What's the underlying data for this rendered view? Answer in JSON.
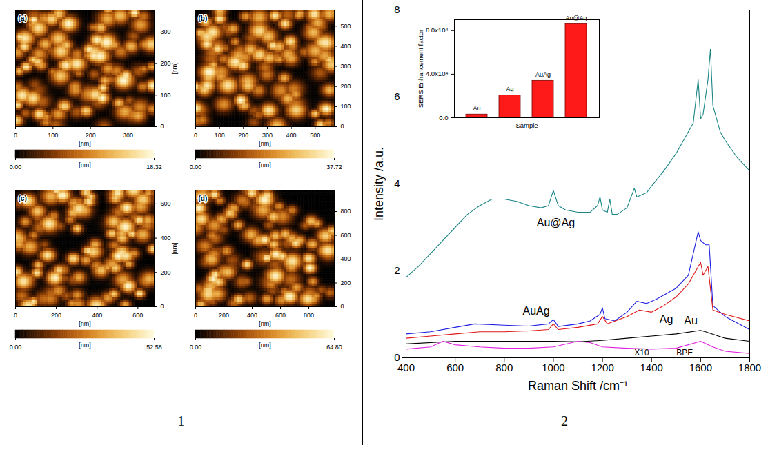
{
  "figure_labels": [
    "1",
    "2"
  ],
  "afm_images": [
    {
      "label": "(a)",
      "xlabel": "[nm]",
      "ylabel": "[nm]",
      "xlim": [
        0,
        370
      ],
      "ylim": [
        0,
        370
      ],
      "xticks": [
        0,
        100,
        200,
        300
      ],
      "yticks": [
        0,
        100,
        200,
        300
      ],
      "colorbar": {
        "range": [
          0,
          18.32
        ],
        "ticks": [
          {
            "value": 0,
            "label": "0.00"
          },
          18.32
        ],
        "label": "[nm]"
      }
    },
    {
      "label": "(b)",
      "xlabel": "[nm]",
      "xlim": [
        0,
        580
      ],
      "ylim": [
        0,
        580
      ],
      "xticks": [
        0,
        100,
        200,
        300,
        400,
        500
      ],
      "yticks": [
        0,
        100,
        200,
        300,
        400,
        500
      ],
      "colorbar": {
        "range": [
          0,
          37.72
        ],
        "ticks": [
          {
            "value": 0,
            "label": "0.00"
          },
          37.72
        ],
        "label": "[nm]"
      }
    },
    {
      "label": "(c)",
      "xlabel": "[nm]",
      "ylabel": "[nm]",
      "xlim": [
        0,
        680
      ],
      "ylim": [
        0,
        680
      ],
      "xticks": [
        0,
        200,
        400,
        600
      ],
      "yticks": [
        0,
        200,
        400,
        600
      ],
      "colorbar": {
        "range": [
          0,
          52.58
        ],
        "ticks": [
          {
            "value": 0,
            "label": "0.00"
          },
          52.58
        ],
        "label": "[nm]"
      }
    },
    {
      "label": "(d)",
      "xlabel": "[nm]",
      "xlim": [
        0,
        980
      ],
      "ylim": [
        0,
        980
      ],
      "xticks": [
        0,
        200,
        400,
        600,
        800
      ],
      "yticks": [
        0,
        200,
        400,
        600,
        800
      ],
      "colorbar": {
        "range": [
          0,
          64.8
        ],
        "ticks": [
          {
            "value": 0,
            "label": "0.00"
          },
          {
            "value": 64.8,
            "label": "64.80"
          }
        ],
        "label": "[nm]"
      }
    }
  ],
  "chart_data": [
    {
      "type": "line",
      "xlabel": "Raman Shift /cm⁻¹",
      "ylabel": "Intensity /a.u.",
      "xlim": [
        400,
        1800
      ],
      "ylim": [
        0,
        8
      ],
      "xticks": [
        400,
        600,
        800,
        1000,
        1200,
        1400,
        1600,
        1800
      ],
      "yticks": [
        0,
        2,
        4,
        6,
        8
      ],
      "grid": false,
      "series": [
        {
          "name": "Au@Ag",
          "color": "#1a8585",
          "label_at": [
            1010,
            3.1
          ],
          "x": [
            400,
            450,
            500,
            550,
            600,
            650,
            700,
            750,
            800,
            850,
            900,
            950,
            980,
            1000,
            1020,
            1050,
            1100,
            1150,
            1180,
            1190,
            1200,
            1220,
            1230,
            1240,
            1260,
            1300,
            1330,
            1340,
            1380,
            1400,
            1450,
            1500,
            1540,
            1570,
            1590,
            1600,
            1610,
            1630,
            1640,
            1650,
            1680,
            1700,
            1750,
            1800
          ],
          "values": [
            1.85,
            2.1,
            2.4,
            2.7,
            3.0,
            3.3,
            3.5,
            3.65,
            3.65,
            3.6,
            3.5,
            3.45,
            3.5,
            3.85,
            3.5,
            3.4,
            3.35,
            3.35,
            3.5,
            3.7,
            3.4,
            3.35,
            3.65,
            3.3,
            3.3,
            3.45,
            3.9,
            3.7,
            3.8,
            3.95,
            4.3,
            4.7,
            5.1,
            5.4,
            6.4,
            5.5,
            5.6,
            6.4,
            7.1,
            5.8,
            5.2,
            5.0,
            4.6,
            4.3
          ]
        },
        {
          "name": "AuAg",
          "color": "#1f1fe0",
          "label_at": [
            930,
            1.08
          ],
          "x": [
            400,
            500,
            600,
            680,
            800,
            900,
            980,
            1000,
            1020,
            1100,
            1150,
            1190,
            1200,
            1210,
            1250,
            1300,
            1340,
            1380,
            1420,
            1500,
            1550,
            1590,
            1600,
            1620,
            1635,
            1650,
            1700,
            1800
          ],
          "values": [
            0.55,
            0.6,
            0.7,
            0.78,
            0.75,
            0.73,
            0.78,
            0.88,
            0.72,
            0.78,
            0.85,
            1.0,
            1.15,
            0.9,
            0.85,
            1.05,
            1.3,
            1.25,
            1.35,
            1.6,
            1.9,
            2.9,
            2.7,
            2.6,
            2.6,
            1.2,
            0.95,
            0.65
          ]
        },
        {
          "name": "Ag",
          "color": "#e01818",
          "label_at": [
            1460,
            0.88
          ],
          "x": [
            400,
            500,
            600,
            700,
            800,
            900,
            980,
            1000,
            1020,
            1100,
            1180,
            1200,
            1220,
            1300,
            1350,
            1400,
            1450,
            1500,
            1550,
            1600,
            1610,
            1630,
            1650,
            1700,
            1800
          ],
          "values": [
            0.45,
            0.5,
            0.55,
            0.6,
            0.6,
            0.62,
            0.65,
            0.78,
            0.65,
            0.7,
            0.78,
            0.95,
            0.78,
            0.95,
            1.1,
            1.05,
            1.2,
            1.4,
            1.7,
            2.2,
            1.9,
            2.1,
            1.1,
            1.0,
            0.85
          ]
        },
        {
          "name": "Au",
          "color": "#000000",
          "label_at": [
            1560,
            0.85
          ],
          "x": [
            400,
            600,
            800,
            1000,
            1100,
            1200,
            1300,
            1400,
            1500,
            1600,
            1620,
            1700,
            1800
          ],
          "values": [
            0.32,
            0.38,
            0.38,
            0.38,
            0.37,
            0.4,
            0.45,
            0.5,
            0.55,
            0.63,
            0.6,
            0.45,
            0.38
          ]
        },
        {
          "name": "BPE",
          "color": "#e020e0",
          "label_at": [
            1535,
            0.11
          ],
          "x": [
            400,
            500,
            550,
            600,
            700,
            800,
            900,
            1000,
            1100,
            1150,
            1200,
            1300,
            1400,
            1500,
            1600,
            1650,
            1700,
            1800
          ],
          "values": [
            0.2,
            0.25,
            0.38,
            0.3,
            0.25,
            0.22,
            0.22,
            0.25,
            0.38,
            0.35,
            0.25,
            0.22,
            0.2,
            0.22,
            0.38,
            0.25,
            0.15,
            0.1
          ]
        }
      ],
      "annotations": [
        {
          "text": "X10",
          "x": 1360,
          "y": 0.11
        }
      ]
    },
    {
      "type": "bar",
      "xlabel": "Sample",
      "ylabel": "SERS Enhancement factor",
      "categories": [
        "Au",
        "Ag",
        "AuAg",
        "Au@Ag"
      ],
      "values": [
        3000,
        20500,
        34000,
        86000
      ],
      "color": "#ff1a1a",
      "ylim": [
        0,
        90000
      ],
      "yticks": [
        {
          "value": 0,
          "label": "0.0"
        },
        {
          "value": 40000,
          "label": "4.0x10⁴"
        },
        {
          "value": 80000,
          "label": "8.0x10⁴"
        }
      ],
      "tick_labels": "y"
    }
  ]
}
